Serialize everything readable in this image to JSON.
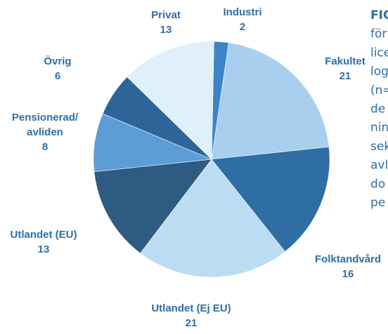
{
  "chart_data": {
    "type": "pie",
    "categories": [
      "Industri",
      "Fakultet",
      "Folktandvård",
      "Utlandet (Ej EU)",
      "Utlandet (EU)",
      "Pensionerad/ avliden",
      "Övrig",
      "Privat"
    ],
    "values": [
      2,
      21,
      16,
      21,
      13,
      8,
      6,
      13
    ],
    "colors": [
      "#3b85c6",
      "#a9cfee",
      "#2f6ea5",
      "#bcdcf3",
      "#2d5b82",
      "#5c9dd5",
      "#2e6599",
      "#dff0fb"
    ]
  },
  "caption": [
    "FIG",
    "för",
    "lice",
    "log",
    "(n=",
    "de",
    "nin",
    "sek",
    "avl",
    "do",
    "pe"
  ]
}
